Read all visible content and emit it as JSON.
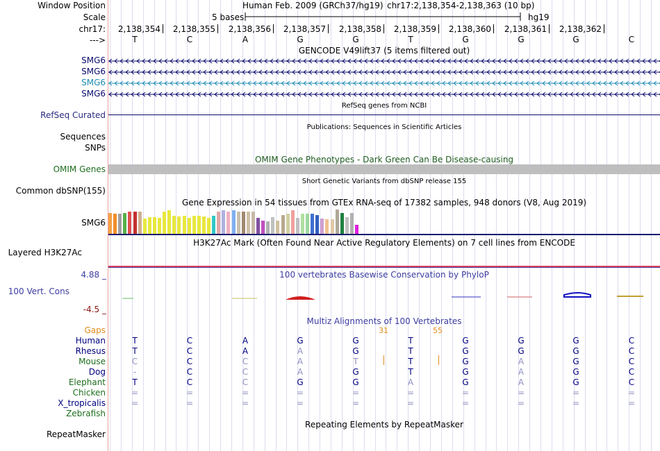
{
  "labels": {
    "window_position": "Window Position",
    "scale": "Scale",
    "chrom": "chr17:",
    "strand": "--->",
    "smg6_1": "SMG6",
    "smg6_2": "SMG6",
    "smg6_3": "SMG6",
    "smg6_4": "SMG6",
    "refseq": "RefSeq Curated",
    "sequences": "Sequences",
    "snps": "SNPs",
    "omim": "OMIM Genes",
    "dbsnp": "Common dbSNP(155)",
    "gtex": "SMG6",
    "h3k27ac": "Layered H3K27Ac",
    "cons_max": "4.88 _",
    "cons": "100 Vert. Cons",
    "cons_min": "-4.5 _",
    "gaps": "Gaps",
    "human": "Human",
    "rhesus": "Rhesus",
    "mouse": "Mouse",
    "dog": "Dog",
    "elephant": "Elephant",
    "chicken": "Chicken",
    "xtrop": "X_tropicalis",
    "zebrafish": "Zebrafish",
    "repeatmasker": "RepeatMasker"
  },
  "header": {
    "assembly": "Human Feb. 2009 (GRCh37/hg19)",
    "range": "chr17:2,138,354-2,138,363 (10 bp)",
    "scale_text": "5 bases",
    "db": "hg19"
  },
  "positions": [
    "2,138,354",
    "2,138,355",
    "2,138,356",
    "2,138,357",
    "2,138,358",
    "2,138,359",
    "2,138,360",
    "2,138,361",
    "2,138,362"
  ],
  "bases": [
    "T",
    "C",
    "A",
    "G",
    "G",
    "T",
    "G",
    "G",
    "G",
    "C"
  ],
  "titles": {
    "gencode": "GENCODE V49lift37 (5 items filtered out)",
    "refseq": "RefSeq genes from NCBI",
    "publications": "Publications: Sequences in Scientific Articles",
    "omim": "OMIM Gene Phenotypes - Dark Green Can Be Disease-causing",
    "dbsnp": "Short Genetic Variants from dbSNP release 155",
    "gtex": "Gene Expression in 54 tissues from GTEx RNA-seq of 17382 samples, 948 donors (V8, Aug 2019)",
    "h3k27ac": "H3K27Ac Mark (Often Found Near Active Regulatory Elements) on 7 cell lines from ENCODE",
    "phylop": "100 vertebrates Basewise Conservation by PhyloP",
    "multiz": "Multiz Alignments of 100 Vertebrates",
    "repeatmasker": "Repeating Elements by RepeatMasker"
  },
  "gaps": {
    "left": "31",
    "right": "55"
  },
  "alignments": {
    "human": [
      "T",
      "C",
      "A",
      "G",
      "G",
      "T",
      "G",
      "G",
      "G",
      "C"
    ],
    "rhesus": [
      "T",
      "C",
      "A",
      "A",
      "G",
      "T",
      "G",
      "G",
      "G",
      "C"
    ],
    "mouse": [
      "C",
      "C",
      "C",
      "A",
      "T",
      "T",
      "G",
      "A",
      "G",
      "C"
    ],
    "dog": [
      "-",
      "C",
      "C",
      "A",
      "G",
      "T",
      "G",
      "A",
      "G",
      "C"
    ],
    "elephant": [
      "T",
      "C",
      "C",
      "G",
      "G",
      "A",
      "G",
      "A",
      "G",
      "C"
    ],
    "chicken": [
      "=",
      "=",
      "=",
      "=",
      "=",
      "=",
      "=",
      "=",
      "=",
      "="
    ],
    "xtrop": [
      "=",
      "=",
      "=",
      "=",
      "=",
      "=",
      "=",
      "=",
      "=",
      "="
    ]
  },
  "gtex_expression": [
    {
      "color": "#f5a142",
      "value": 0.95
    },
    {
      "color": "#f28c28",
      "value": 0.92
    },
    {
      "color": "#a0a0a0",
      "value": 0.9
    },
    {
      "color": "#56b14a",
      "value": 0.95
    },
    {
      "color": "#e05050",
      "value": 1.0
    },
    {
      "color": "#c43030",
      "value": 1.0
    },
    {
      "color": "#d0b090",
      "value": 1.0
    },
    {
      "color": "#e8e840",
      "value": 0.7
    },
    {
      "color": "#e8e840",
      "value": 0.75
    },
    {
      "color": "#e8e840",
      "value": 0.75
    },
    {
      "color": "#e8e840",
      "value": 0.72
    },
    {
      "color": "#e8e840",
      "value": 1.0
    },
    {
      "color": "#e8e840",
      "value": 1.05
    },
    {
      "color": "#e8e840",
      "value": 0.8
    },
    {
      "color": "#e8e840",
      "value": 0.78
    },
    {
      "color": "#e8e840",
      "value": 0.8
    },
    {
      "color": "#e8e840",
      "value": 0.72
    },
    {
      "color": "#e8e840",
      "value": 0.8
    },
    {
      "color": "#e8e840",
      "value": 0.8
    },
    {
      "color": "#e8e840",
      "value": 0.78
    },
    {
      "color": "#e8e840",
      "value": 0.72
    },
    {
      "color": "#30c8c8",
      "value": 0.8
    },
    {
      "color": "#e0a8a8",
      "value": 1.0
    },
    {
      "color": "#b0b0e0",
      "value": 1.05
    },
    {
      "color": "#f0b0c0",
      "value": 1.0
    },
    {
      "color": "#80b0f0",
      "value": 1.05
    },
    {
      "color": "#c8c0b0",
      "value": 1.0
    },
    {
      "color": "#a08870",
      "value": 1.0
    },
    {
      "color": "#d0c0a8",
      "value": 1.0
    },
    {
      "color": "#c8b8a8",
      "value": 1.0
    },
    {
      "color": "#8050a0",
      "value": 0.72
    },
    {
      "color": "#c050c0",
      "value": 0.6
    },
    {
      "color": "#b0b0b0",
      "value": 0.55
    },
    {
      "color": "#c0c0c0",
      "value": 0.75
    },
    {
      "color": "#d0c0a0",
      "value": 0.6
    },
    {
      "color": "#b8a890",
      "value": 0.85
    },
    {
      "color": "#d0d0a0",
      "value": 0.9
    },
    {
      "color": "#f0a0a0",
      "value": 1.05
    },
    {
      "color": "#c0c0c0",
      "value": 0.72
    },
    {
      "color": "#b0e0a0",
      "value": 0.9
    },
    {
      "color": "#a0d8a0",
      "value": 0.9
    },
    {
      "color": "#4070d0",
      "value": 0.9
    },
    {
      "color": "#3060c0",
      "value": 0.85
    },
    {
      "color": "#d0a0d0",
      "value": 0.7
    },
    {
      "color": "#f0c090",
      "value": 0.65
    },
    {
      "color": "#e0c8a8",
      "value": 0.65
    },
    {
      "color": "#b0a898",
      "value": 1.1
    },
    {
      "color": "#208040",
      "value": 0.95
    },
    {
      "color": "#c0c0c0",
      "value": 0.75
    },
    {
      "color": "#b0b0b0",
      "value": 0.95
    },
    {
      "color": "#e020e0",
      "value": 0.4
    }
  ],
  "colors": {
    "gene": "#0a0a6e",
    "gene_alt": "#1e8cb4",
    "omim_bar": "#bebebe",
    "omim_text": "#1e5c1e",
    "h3k27ac_line": "#e04060",
    "phylop_text": "#3c3ca0",
    "cons_red": "#8c1414",
    "gaps": "#e08a1a",
    "aln_text": "#000080",
    "aln_light": "#9090c0",
    "green_label": "#1e6e1e"
  }
}
